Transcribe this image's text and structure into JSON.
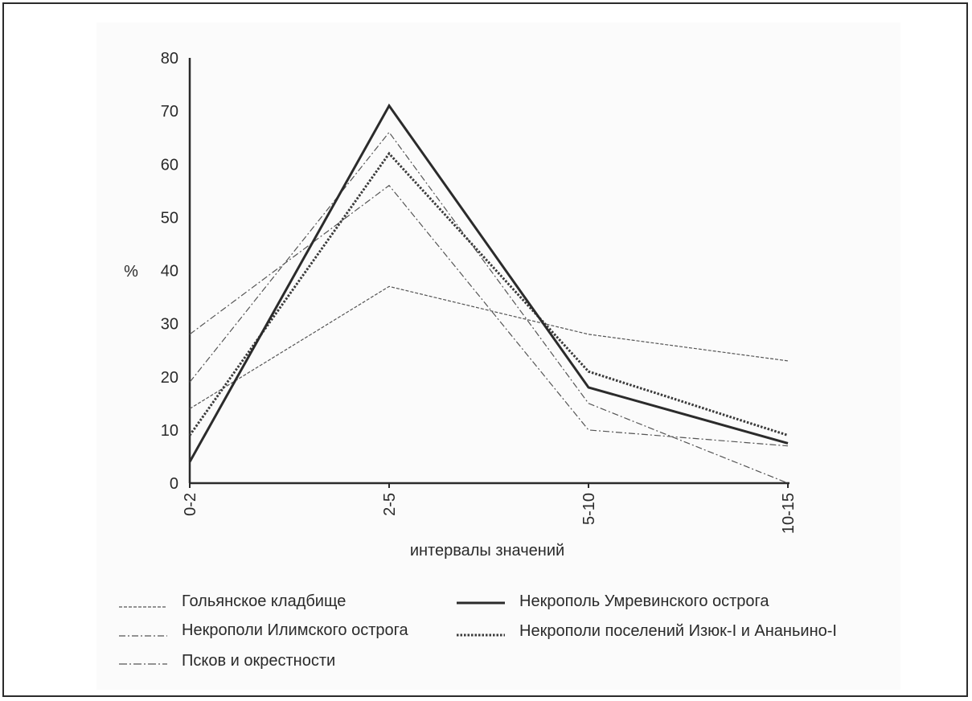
{
  "chart_data": {
    "type": "line",
    "categories": [
      "0-2",
      "2-5",
      "5-10",
      "10-15"
    ],
    "xlabel": "интервалы значений",
    "ylabel": "%",
    "ylim": [
      0,
      80
    ],
    "yticks": [
      0,
      10,
      20,
      30,
      40,
      50,
      60,
      70,
      80
    ],
    "grid": false,
    "legend_position": "bottom",
    "series": [
      {
        "name": "Гольянское кладбище",
        "values": [
          14,
          37,
          28,
          23
        ],
        "style": "dashed",
        "color": "#555555"
      },
      {
        "name": "Некрополи Илимского острога",
        "values": [
          19,
          66,
          15,
          0
        ],
        "style": "dashdot",
        "color": "#555555"
      },
      {
        "name": "Псков и окрестности",
        "values": [
          28,
          56,
          10,
          7
        ],
        "style": "dashdot",
        "color": "#555555"
      },
      {
        "name": "Некрополь Умревинского острога",
        "values": [
          4,
          71,
          18,
          7.5
        ],
        "style": "solid",
        "color": "#2b2b2b"
      },
      {
        "name": "Некрополи поселений Изюк-I и Ананьино-I",
        "values": [
          9,
          62,
          21,
          9
        ],
        "style": "dotted",
        "color": "#3a3a3a"
      }
    ]
  }
}
